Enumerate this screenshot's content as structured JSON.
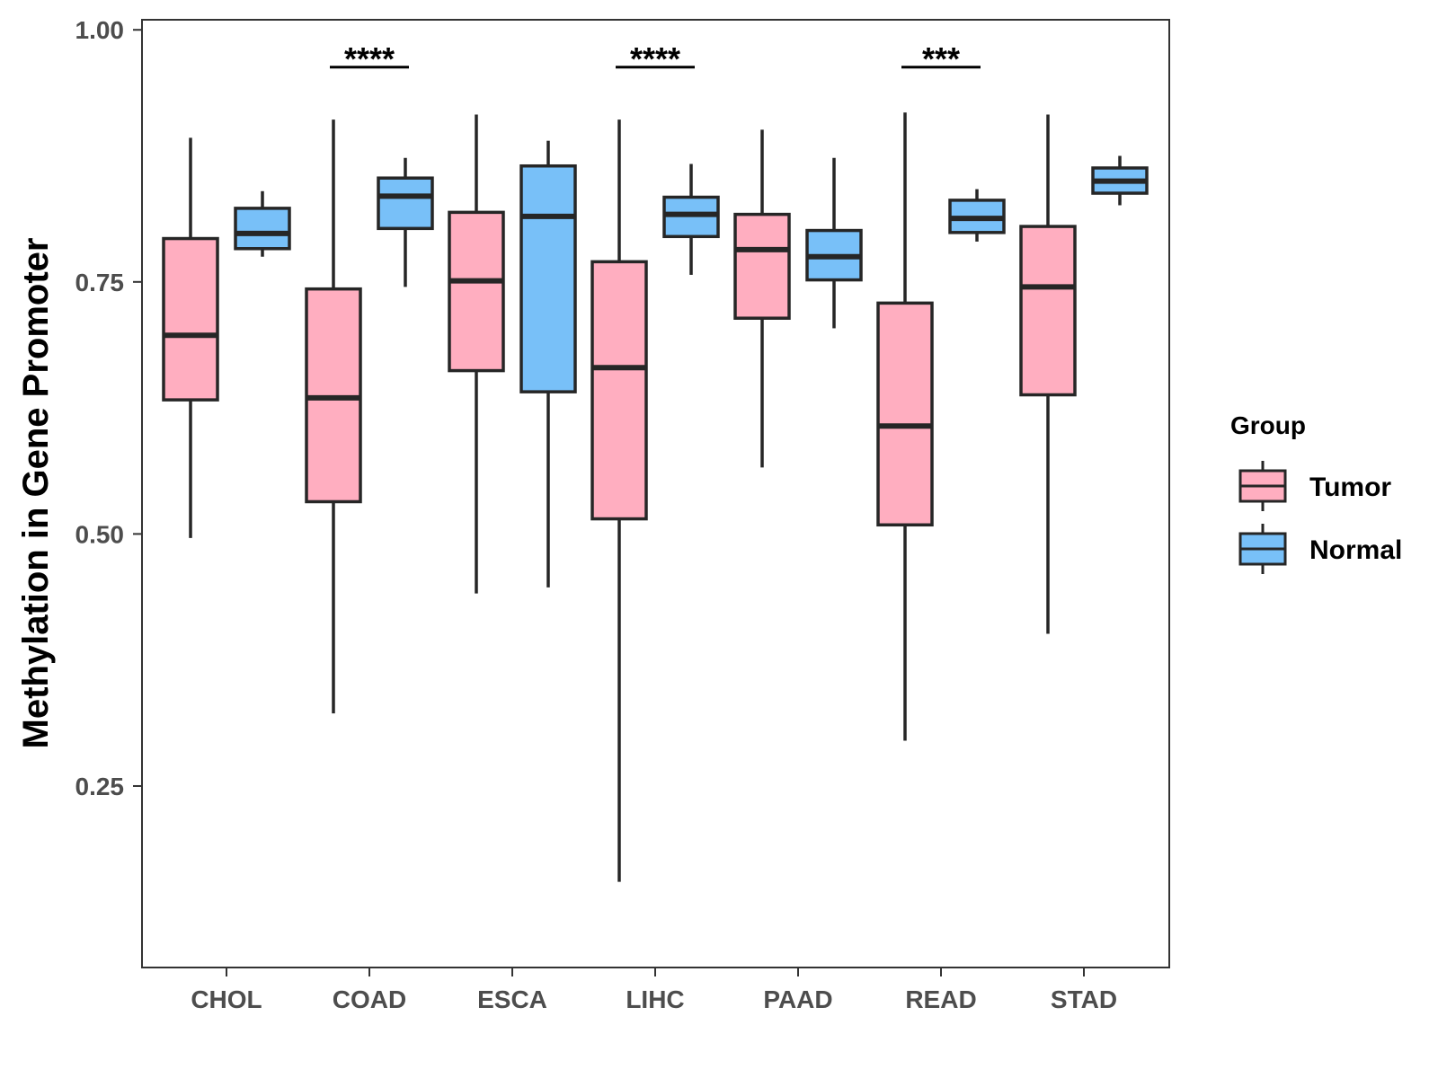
{
  "chart_data": {
    "type": "boxplot",
    "title": "",
    "xlabel": "",
    "ylabel": "Methylation in Gene Promoter",
    "ylim": [
      0.07,
      1.01
    ],
    "yticks": [
      0.25,
      0.5,
      0.75,
      1.0
    ],
    "ytick_labels": [
      "0.25",
      "0.50",
      "0.75",
      "1.00"
    ],
    "categories": [
      "CHOL",
      "COAD",
      "ESCA",
      "LIHC",
      "PAAD",
      "READ",
      "STAD"
    ],
    "legend": {
      "title": "Group",
      "position": "right",
      "entries": [
        {
          "name": "Tumor",
          "color": "#FFAEC0"
        },
        {
          "name": "Normal",
          "color": "#78C0F8"
        }
      ]
    },
    "series": [
      {
        "name": "Tumor",
        "color": "#FFAEC0",
        "boxes": [
          {
            "min": 0.496,
            "q1": 0.633,
            "median": 0.697,
            "q3": 0.793,
            "max": 0.893
          },
          {
            "min": 0.322,
            "q1": 0.532,
            "median": 0.635,
            "q3": 0.743,
            "max": 0.911
          },
          {
            "min": 0.441,
            "q1": 0.662,
            "median": 0.751,
            "q3": 0.819,
            "max": 0.916
          },
          {
            "min": 0.155,
            "q1": 0.515,
            "median": 0.665,
            "q3": 0.77,
            "max": 0.911
          },
          {
            "min": 0.566,
            "q1": 0.714,
            "median": 0.782,
            "q3": 0.817,
            "max": 0.901
          },
          {
            "min": 0.295,
            "q1": 0.509,
            "median": 0.607,
            "q3": 0.729,
            "max": 0.918
          },
          {
            "min": 0.401,
            "q1": 0.638,
            "median": 0.745,
            "q3": 0.805,
            "max": 0.916
          }
        ]
      },
      {
        "name": "Normal",
        "color": "#78C0F8",
        "boxes": [
          {
            "min": 0.775,
            "q1": 0.783,
            "median": 0.798,
            "q3": 0.823,
            "max": 0.84
          },
          {
            "min": 0.745,
            "q1": 0.803,
            "median": 0.835,
            "q3": 0.853,
            "max": 0.873
          },
          {
            "min": 0.447,
            "q1": 0.641,
            "median": 0.815,
            "q3": 0.865,
            "max": 0.89
          },
          {
            "min": 0.757,
            "q1": 0.795,
            "median": 0.817,
            "q3": 0.834,
            "max": 0.867
          },
          {
            "min": 0.704,
            "q1": 0.752,
            "median": 0.775,
            "q3": 0.801,
            "max": 0.873
          },
          {
            "min": 0.79,
            "q1": 0.799,
            "median": 0.813,
            "q3": 0.831,
            "max": 0.842
          },
          {
            "min": 0.826,
            "q1": 0.838,
            "median": 0.85,
            "q3": 0.863,
            "max": 0.875
          }
        ]
      }
    ],
    "annotations": [
      {
        "category": "COAD",
        "text": "****",
        "y": 0.963
      },
      {
        "category": "LIHC",
        "text": "****",
        "y": 0.963
      },
      {
        "category": "READ",
        "text": "***",
        "y": 0.963
      }
    ]
  }
}
